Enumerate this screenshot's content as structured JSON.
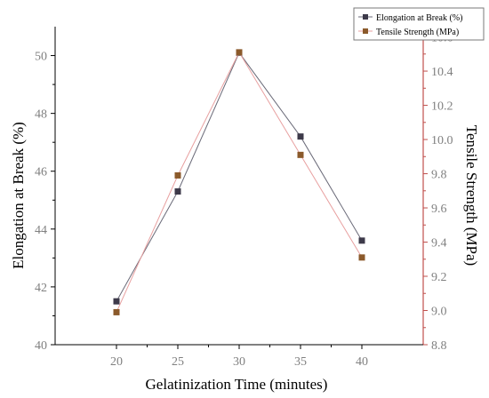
{
  "chart_data": {
    "type": "line",
    "xlabel": "Gelatinization Time (minutes)",
    "x": [
      20,
      25,
      30,
      35,
      40
    ],
    "xlim": [
      15,
      45
    ],
    "xticks": [
      20,
      25,
      30,
      35,
      40
    ],
    "left_axis": {
      "label": "Elongation at Break (%)",
      "range": [
        40,
        51
      ],
      "ticks": [
        40,
        42,
        44,
        46,
        48,
        50
      ]
    },
    "right_axis": {
      "label": "Tensile Strength (MPa)",
      "range": [
        8.8,
        10.66
      ],
      "ticks": [
        8.8,
        9.0,
        9.2,
        9.4,
        9.6,
        9.8,
        10.0,
        10.2,
        10.4,
        10.6
      ]
    },
    "series": [
      {
        "name": "Elongation at Break (%)",
        "axis": "left",
        "values": [
          41.5,
          45.3,
          50.1,
          47.2,
          43.6
        ],
        "marker_color": "#3d3a4a",
        "line_color": "#6a6a78"
      },
      {
        "name": "Tensile Strength (MPa)",
        "axis": "right",
        "values": [
          8.99,
          9.79,
          10.51,
          9.91,
          9.31
        ],
        "marker_color": "#8b5a2b",
        "line_color": "#e8a0a0"
      }
    ],
    "legend_position": "top-right",
    "right_axis_color": "#c0504d",
    "grid": false
  }
}
